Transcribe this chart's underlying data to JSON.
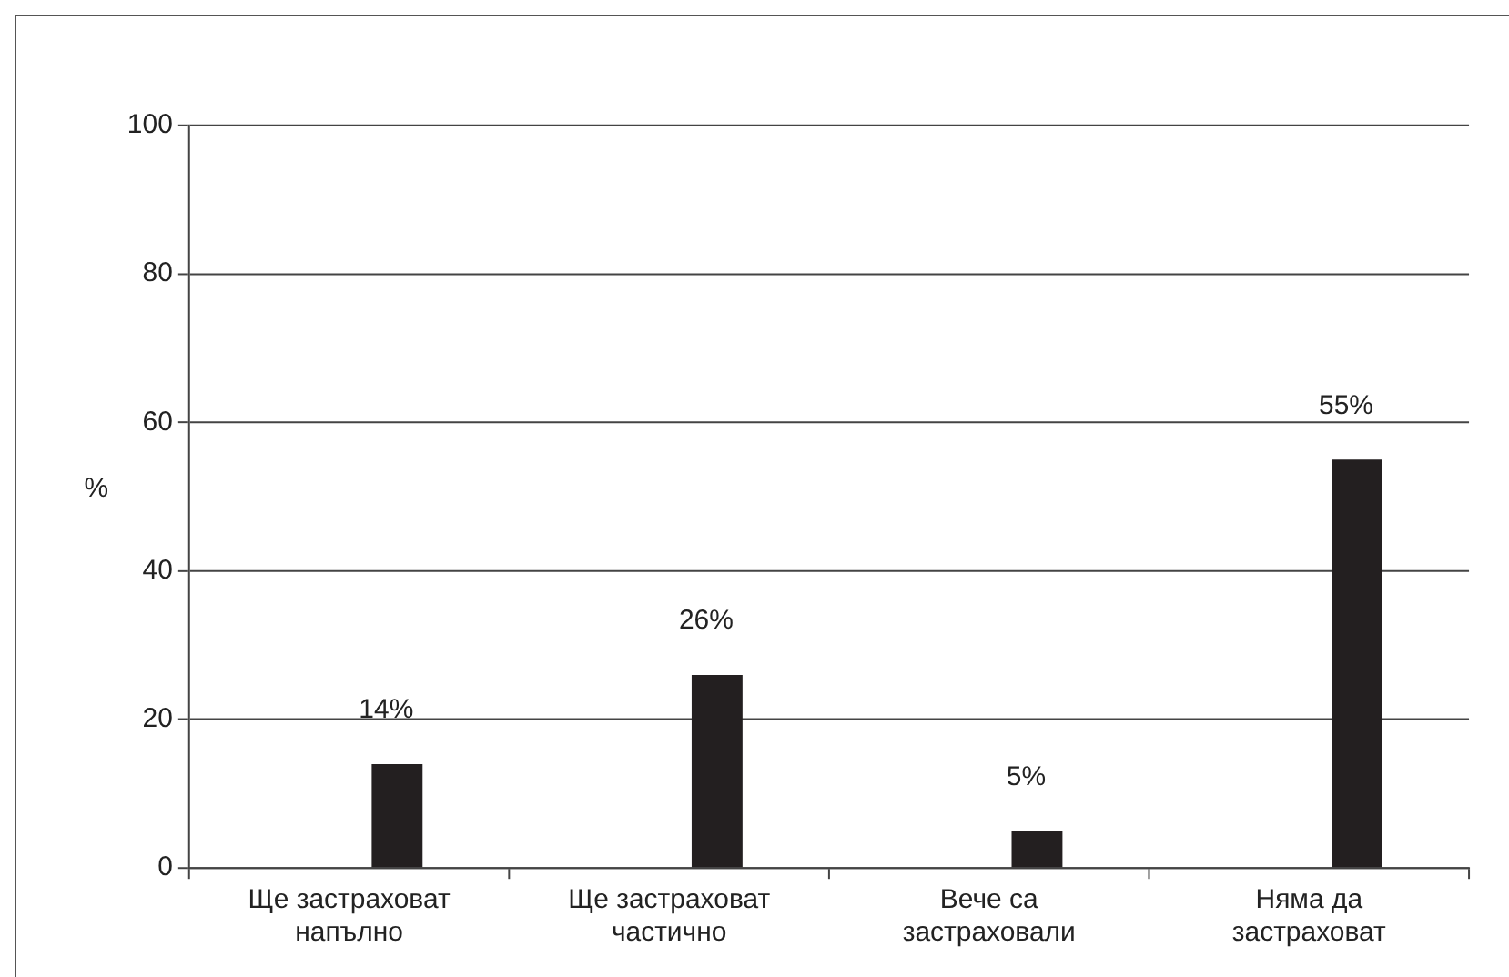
{
  "chart_data": {
    "type": "bar",
    "ylabel": "%",
    "categories": [
      "Ще застраховат\nнапълно",
      "Ще застраховат\nчастично",
      "Вече са\nзастраховали",
      "Няма да\nзастраховат"
    ],
    "values": [
      14,
      26,
      5,
      55
    ],
    "value_labels": [
      "14%",
      "26%",
      "5%",
      "55%"
    ],
    "color": "#231f20",
    "ylim": [
      0,
      100
    ],
    "yticks": [
      0,
      20,
      40,
      60,
      80,
      100
    ],
    "grid": "y",
    "legend": false
  }
}
